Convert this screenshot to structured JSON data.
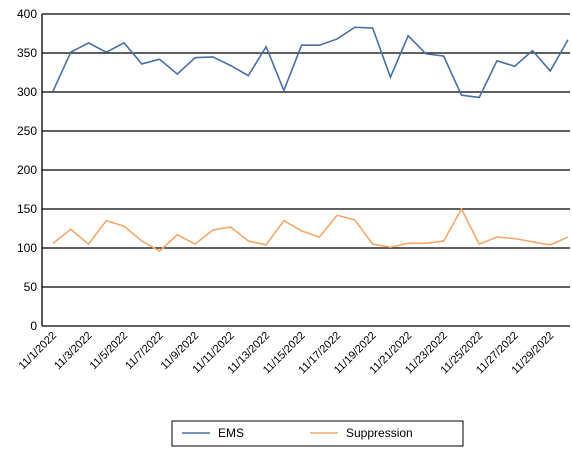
{
  "chart_data": {
    "type": "line",
    "categories": [
      "11/1/2022",
      null,
      "11/3/2022",
      null,
      "11/5/2022",
      null,
      "11/7/2022",
      null,
      "11/9/2022",
      null,
      "11/11/2022",
      null,
      "11/13/2022",
      null,
      "11/15/2022",
      null,
      "11/17/2022",
      null,
      "11/19/2022",
      null,
      "11/21/2022",
      null,
      "11/23/2022",
      null,
      "11/25/2022",
      null,
      "11/27/2022",
      null,
      "11/29/2022",
      null
    ],
    "series": [
      {
        "name": "EMS",
        "color": "#4a6fa5",
        "values": [
          301,
          351,
          363,
          351,
          363,
          336,
          342,
          323,
          344,
          345,
          334,
          321,
          358,
          302,
          360,
          360,
          368,
          383,
          382,
          319,
          372,
          349,
          346,
          296,
          293,
          340,
          333,
          353,
          327,
          367
        ]
      },
      {
        "name": "Suppression",
        "color": "#f5a86a",
        "values": [
          106,
          124,
          105,
          135,
          128,
          109,
          96,
          117,
          105,
          123,
          127,
          109,
          104,
          135,
          122,
          114,
          142,
          136,
          105,
          101,
          106,
          106,
          109,
          150,
          105,
          114,
          112,
          108,
          104,
          114
        ]
      }
    ],
    "ylim": [
      0,
      400
    ],
    "yticks": [
      0,
      50,
      100,
      150,
      200,
      250,
      300,
      350,
      400
    ],
    "grid": true,
    "legend": "bottom"
  }
}
